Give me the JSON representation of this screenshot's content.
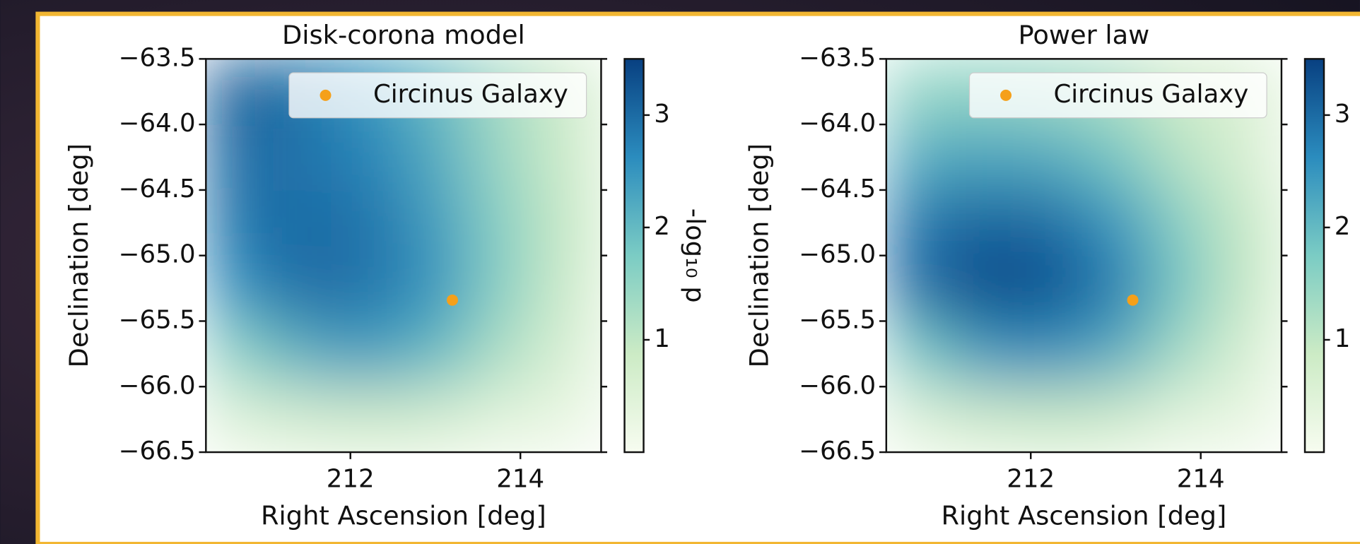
{
  "chart_data": [
    {
      "type": "heatmap",
      "title": "Disk-corona model",
      "x_label": "Right Ascension [deg]",
      "y_label": "Declination [deg]",
      "xlim": [
        210.3,
        214.95
      ],
      "ylim": [
        -66.5,
        -63.5
      ],
      "xticks": [
        212,
        214
      ],
      "yticks": [
        {
          "value": -63.5,
          "label": "−63.5"
        },
        {
          "value": -64.0,
          "label": "−64.0"
        },
        {
          "value": -64.5,
          "label": "−64.5"
        },
        {
          "value": -65.0,
          "label": "−65.0"
        },
        {
          "value": -65.5,
          "label": "−65.5"
        },
        {
          "value": -66.0,
          "label": "−66.0"
        },
        {
          "value": -66.5,
          "label": "−66.5"
        }
      ],
      "x": [
        210.69,
        211.46,
        212.24,
        213.01,
        213.79,
        214.56
      ],
      "y": [
        -63.75,
        -64.25,
        -64.75,
        -65.25,
        -65.75,
        -66.25
      ],
      "z": [
        [
          3.2,
          2.9,
          2.5,
          2.0,
          1.3,
          0.8
        ],
        [
          3.0,
          2.9,
          2.7,
          2.2,
          1.4,
          0.8
        ],
        [
          2.9,
          3.0,
          2.9,
          2.4,
          1.6,
          0.9
        ],
        [
          2.6,
          3.0,
          2.9,
          2.5,
          1.6,
          0.8
        ],
        [
          1.6,
          2.2,
          2.4,
          2.0,
          1.2,
          0.6
        ],
        [
          0.5,
          0.7,
          0.8,
          0.7,
          0.4,
          0.3
        ]
      ],
      "colormap": [
        "#f7fcf0",
        "#ccebc5",
        "#7bccc4",
        "#2b8cbe",
        "#084081"
      ],
      "clim": [
        0,
        3.5
      ],
      "cticks": [
        1,
        2,
        3
      ],
      "colorbar_label": "-log₁₀ p",
      "legend": "upper right",
      "series": [
        {
          "name": "Circinus Galaxy",
          "color": "#f5a01a",
          "x": [
            213.2
          ],
          "y": [
            -65.34
          ]
        }
      ]
    },
    {
      "type": "heatmap",
      "title": "Power law",
      "x_label": "Right Ascension [deg]",
      "y_label": "Declination [deg]",
      "xlim": [
        210.3,
        214.95
      ],
      "ylim": [
        -66.5,
        -63.5
      ],
      "xticks": [
        212,
        214
      ],
      "yticks": [
        {
          "value": -63.5,
          "label": "−63.5"
        },
        {
          "value": -64.0,
          "label": "−64.0"
        },
        {
          "value": -64.5,
          "label": "−64.5"
        },
        {
          "value": -65.0,
          "label": "−65.0"
        },
        {
          "value": -65.5,
          "label": "−65.5"
        },
        {
          "value": -66.0,
          "label": "−66.0"
        },
        {
          "value": -66.5,
          "label": "−66.5"
        }
      ],
      "x": [
        210.69,
        211.46,
        212.24,
        213.01,
        213.79,
        214.56
      ],
      "y": [
        -63.75,
        -64.25,
        -64.75,
        -65.25,
        -65.75,
        -66.25
      ],
      "z": [
        [
          1.5,
          1.5,
          1.4,
          1.2,
          0.8,
          0.6
        ],
        [
          2.2,
          2.3,
          2.2,
          1.8,
          1.1,
          0.6
        ],
        [
          2.9,
          3.1,
          3.0,
          2.5,
          1.6,
          0.9
        ],
        [
          3.0,
          3.4,
          3.3,
          2.8,
          1.8,
          0.9
        ],
        [
          1.8,
          2.5,
          2.6,
          2.2,
          1.3,
          0.6
        ],
        [
          0.5,
          0.8,
          0.9,
          0.8,
          0.4,
          0.3
        ]
      ],
      "colormap": [
        "#f7fcf0",
        "#ccebc5",
        "#7bccc4",
        "#2b8cbe",
        "#084081"
      ],
      "clim": [
        0,
        3.5
      ],
      "cticks": [
        1,
        2,
        3
      ],
      "legend": "upper right",
      "series": [
        {
          "name": "Circinus Galaxy",
          "color": "#f5a01a",
          "x": [
            213.2
          ],
          "y": [
            -65.34
          ]
        }
      ]
    }
  ]
}
